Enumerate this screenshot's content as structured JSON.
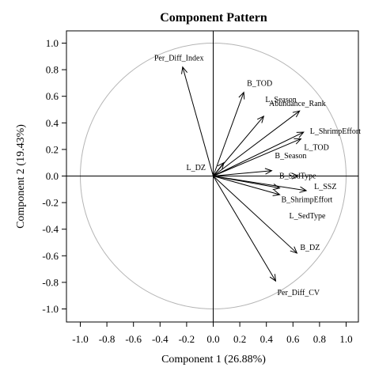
{
  "chart_data": {
    "type": "scatter",
    "title": "Component Pattern",
    "xlabel": "Component 1 (26.88%)",
    "ylabel": "Component 2 (19.43%)",
    "xlim": [
      -1.05,
      1.05
    ],
    "ylim": [
      -1.05,
      1.05
    ],
    "xticks": [
      "-1.0",
      "-0.8",
      "-0.6",
      "-0.4",
      "-0.2",
      "0.0",
      "0.2",
      "0.4",
      "0.6",
      "0.8",
      "1.0"
    ],
    "yticks": [
      "-1.0",
      "-0.8",
      "-0.6",
      "-0.4",
      "-0.2",
      "0.0",
      "0.2",
      "0.4",
      "0.6",
      "0.8",
      "1.0"
    ],
    "unit_circle": true,
    "reference_lines": [
      0,
      0
    ],
    "grid": false,
    "vectors": [
      {
        "label": "Per_Diff_Index",
        "x": -0.23,
        "y": 0.82
      },
      {
        "label": "B_TOD",
        "x": 0.23,
        "y": 0.63
      },
      {
        "label": "L_Season",
        "x": 0.38,
        "y": 0.45
      },
      {
        "label": "Abundance_Rank",
        "x": 0.65,
        "y": 0.49
      },
      {
        "label": "L_ShrimpEffort",
        "x": 0.68,
        "y": 0.33
      },
      {
        "label": "L_TOD",
        "x": 0.66,
        "y": 0.28
      },
      {
        "label": "L_DZ",
        "x": 0.08,
        "y": 0.1
      },
      {
        "label": "B_Season",
        "x": 0.44,
        "y": 0.04
      },
      {
        "label": "B_SedType",
        "x": 0.64,
        "y": 0.0
      },
      {
        "label": "L_SSZ",
        "x": 0.7,
        "y": -0.11
      },
      {
        "label": "B_ShrimpEffort",
        "x": 0.5,
        "y": -0.09
      },
      {
        "label": "L_SedType",
        "x": 0.5,
        "y": -0.14
      },
      {
        "label": "B_DZ",
        "x": 0.63,
        "y": -0.58
      },
      {
        "label": "Per_Diff_CV",
        "x": 0.47,
        "y": -0.79
      }
    ]
  },
  "colors": {
    "background": "#ffffff",
    "frame": "#000000",
    "circle": "#b4b4b4",
    "vector": "#000000"
  }
}
